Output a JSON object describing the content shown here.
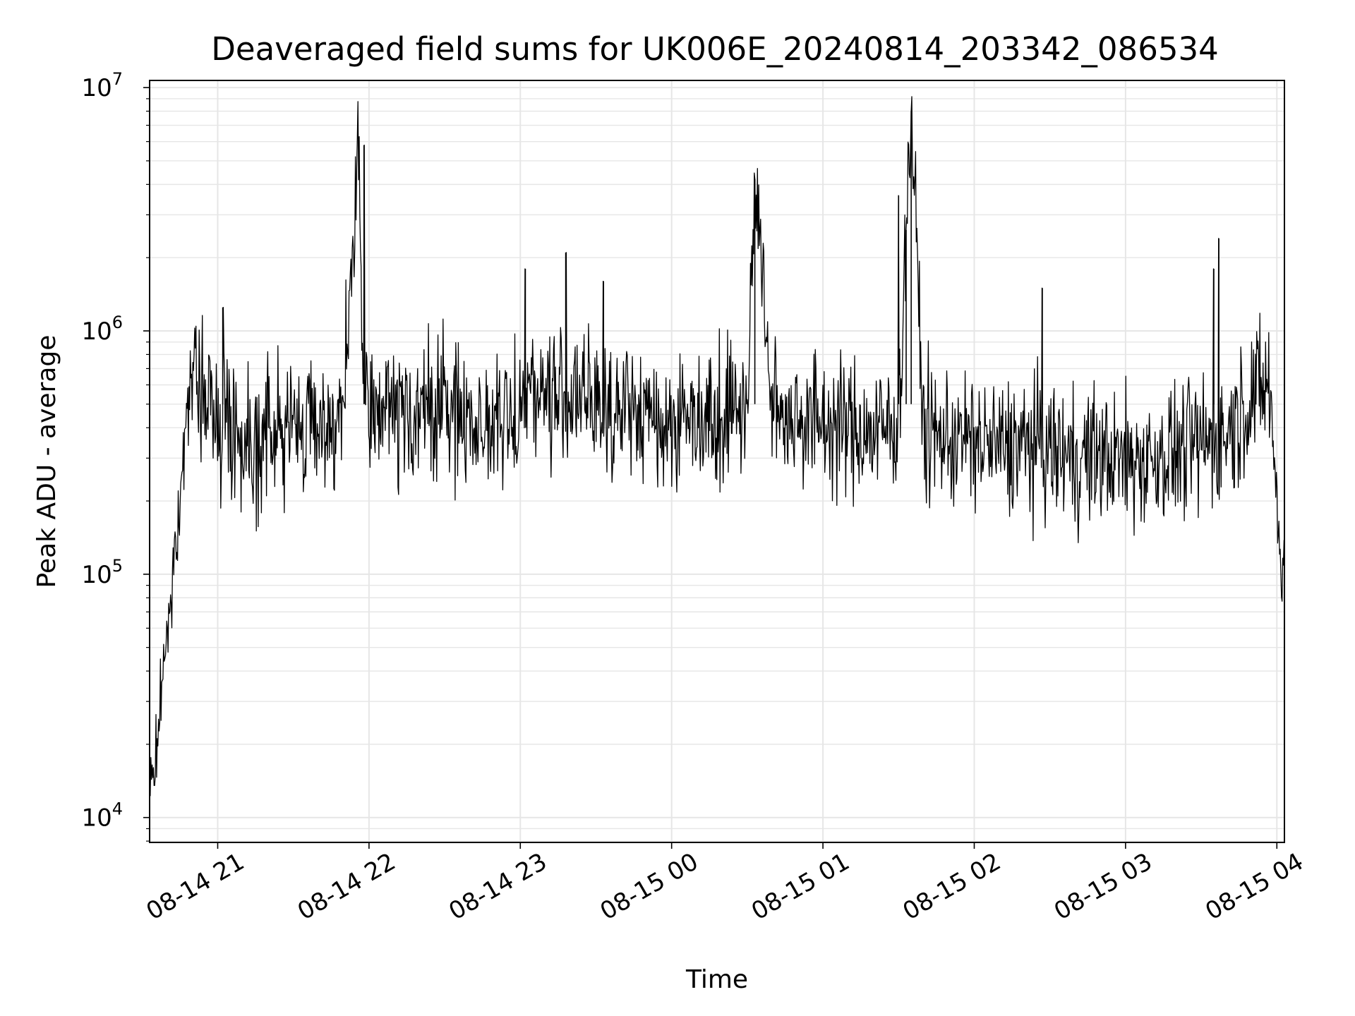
{
  "chart_data": {
    "type": "line",
    "title": "Deaveraged field sums for UK006E_20240814_203342_086534",
    "xlabel": "Time",
    "ylabel": "Peak ADU - average",
    "yscale": "log",
    "ylim": [
      7900,
      10700000
    ],
    "xlim": [
      "2024-08-14 20:33",
      "2024-08-15 04:03"
    ],
    "y_ticks": [
      {
        "value": 10000,
        "base": "10",
        "exp": "4"
      },
      {
        "value": 100000,
        "base": "10",
        "exp": "5"
      },
      {
        "value": 1000000,
        "base": "10",
        "exp": "6"
      },
      {
        "value": 10000000,
        "base": "10",
        "exp": "7"
      }
    ],
    "x_ticks": [
      {
        "time": "2024-08-14 21:00",
        "label": "08-14 21"
      },
      {
        "time": "2024-08-14 22:00",
        "label": "08-14 22"
      },
      {
        "time": "2024-08-14 23:00",
        "label": "08-14 23"
      },
      {
        "time": "2024-08-15 00:00",
        "label": "08-15 00"
      },
      {
        "time": "2024-08-15 01:00",
        "label": "08-15 01"
      },
      {
        "time": "2024-08-15 02:00",
        "label": "08-15 02"
      },
      {
        "time": "2024-08-15 03:00",
        "label": "08-15 03"
      },
      {
        "time": "2024-08-15 04:00",
        "label": "08-15 04"
      }
    ],
    "grid": true,
    "line_color": "#000000",
    "grid_color": "#e6e6e6",
    "series": [
      {
        "x": [
          "2024-08-14 20:33",
          "2024-08-14 20:36",
          "2024-08-14 20:39",
          "2024-08-14 20:42",
          "2024-08-14 20:45",
          "2024-08-14 20:48",
          "2024-08-14 20:51",
          "2024-08-14 20:55",
          "2024-08-14 21:00",
          "2024-08-14 21:05",
          "2024-08-14 21:10",
          "2024-08-14 21:20",
          "2024-08-14 21:30",
          "2024-08-14 21:40",
          "2024-08-14 21:50",
          "2024-08-14 21:56",
          "2024-08-14 21:58",
          "2024-08-14 22:05",
          "2024-08-14 22:15",
          "2024-08-14 22:25",
          "2024-08-14 22:35",
          "2024-08-14 22:45",
          "2024-08-14 22:55",
          "2024-08-14 23:05",
          "2024-08-14 23:10",
          "2024-08-14 23:20",
          "2024-08-14 23:30",
          "2024-08-14 23:40",
          "2024-08-14 23:50",
          "2024-08-15 00:00",
          "2024-08-15 00:10",
          "2024-08-15 00:20",
          "2024-08-15 00:30",
          "2024-08-15 00:33",
          "2024-08-15 00:40",
          "2024-08-15 00:50",
          "2024-08-15 01:00",
          "2024-08-15 01:10",
          "2024-08-15 01:20",
          "2024-08-15 01:30",
          "2024-08-15 01:35",
          "2024-08-15 01:40",
          "2024-08-15 01:50",
          "2024-08-15 02:00",
          "2024-08-15 02:10",
          "2024-08-15 02:20",
          "2024-08-15 02:30",
          "2024-08-15 02:40",
          "2024-08-15 02:50",
          "2024-08-15 03:00",
          "2024-08-15 03:10",
          "2024-08-15 03:20",
          "2024-08-15 03:30",
          "2024-08-15 03:40",
          "2024-08-15 03:50",
          "2024-08-15 03:57",
          "2024-08-15 04:00",
          "2024-08-15 04:02",
          "2024-08-15 04:03"
        ],
        "y": [
          12000,
          20000,
          50000,
          90000,
          180000,
          600000,
          700000,
          500000,
          450000,
          420000,
          350000,
          380000,
          400000,
          420000,
          450000,
          5800000,
          400000,
          500000,
          450000,
          480000,
          470000,
          420000,
          400000,
          600000,
          550000,
          520000,
          500000,
          480000,
          450000,
          420000,
          450000,
          470000,
          500000,
          4200000,
          460000,
          450000,
          420000,
          400000,
          380000,
          420000,
          8000000,
          380000,
          360000,
          350000,
          330000,
          340000,
          320000,
          300000,
          310000,
          290000,
          300000,
          320000,
          340000,
          380000,
          550000,
          600000,
          200000,
          90000,
          170000
        ]
      }
    ],
    "spikes": [
      {
        "time": "2024-08-14 21:02",
        "value": 1250000
      },
      {
        "time": "2024-08-14 21:58",
        "value": 5800000
      },
      {
        "time": "2024-08-14 23:02",
        "value": 1800000
      },
      {
        "time": "2024-08-14 23:18",
        "value": 2100000
      },
      {
        "time": "2024-08-14 23:33",
        "value": 1600000
      },
      {
        "time": "2024-08-15 00:33",
        "value": 4200000
      },
      {
        "time": "2024-08-15 01:30",
        "value": 3600000
      },
      {
        "time": "2024-08-15 01:33",
        "value": 2600000
      },
      {
        "time": "2024-08-15 01:35",
        "value": 8000000
      },
      {
        "time": "2024-08-15 02:27",
        "value": 1500000
      },
      {
        "time": "2024-08-15 03:35",
        "value": 1800000
      },
      {
        "time": "2024-08-15 03:37",
        "value": 2400000
      }
    ]
  }
}
